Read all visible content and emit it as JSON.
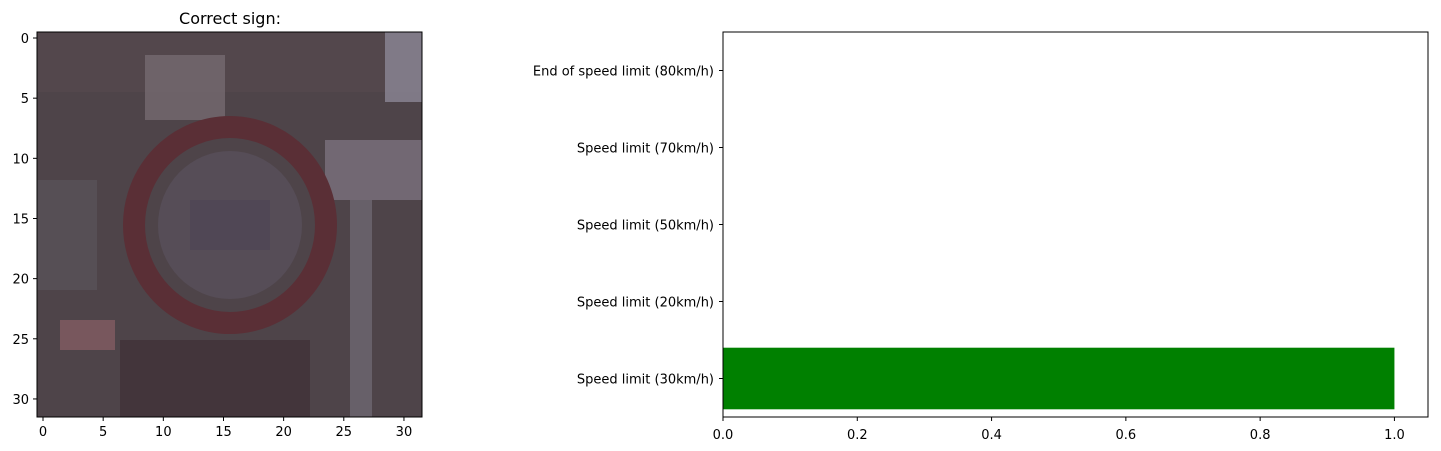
{
  "chart_data": [
    {
      "type": "image",
      "title": "Correct sign:",
      "xlim": [
        -0.5,
        31.5
      ],
      "ylim": [
        31.5,
        -0.5
      ],
      "xticks": [
        "0",
        "5",
        "10",
        "15",
        "20",
        "25",
        "30"
      ],
      "yticks": [
        "0",
        "5",
        "10",
        "15",
        "20",
        "25",
        "30"
      ],
      "image_colors": {
        "background": "#4e4449",
        "sign_ring": "#5a2f36",
        "sign_center": "#564d57",
        "light_edge": "#8c8796"
      }
    },
    {
      "type": "bar",
      "orientation": "horizontal",
      "categories": [
        "Speed limit (30km/h)",
        "Speed limit (20km/h)",
        "Speed limit (50km/h)",
        "Speed limit (70km/h)",
        "End of speed limit (80km/h)"
      ],
      "values": [
        1.0,
        0.0,
        0.0,
        0.0,
        0.0
      ],
      "xlim": [
        0,
        1.05
      ],
      "xticks": [
        "0.0",
        "0.2",
        "0.4",
        "0.6",
        "0.8",
        "1.0"
      ],
      "bar_color": "#008000",
      "grid": false
    }
  ]
}
